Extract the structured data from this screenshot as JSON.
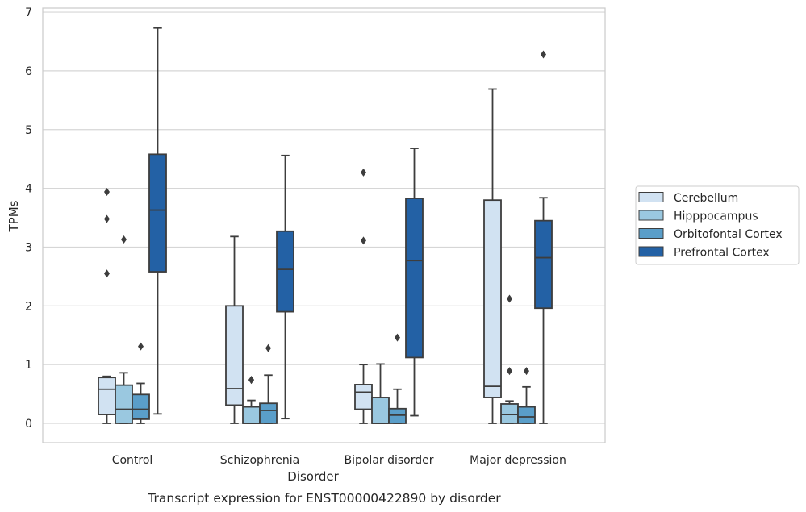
{
  "chart_data": {
    "type": "boxplot",
    "caption": "Transcript expression for ENST00000422890 by disorder",
    "xlabel": "Disorder",
    "ylabel": "TPMs",
    "ylim": [
      -0.32,
      7.08
    ],
    "yticks": [
      0,
      1,
      2,
      3,
      4,
      5,
      6,
      7
    ],
    "grid": true,
    "legend_position": "right",
    "categories": [
      "Control",
      "Schizophrenia",
      "Bipolar disorder",
      "Major depression"
    ],
    "series": [
      {
        "name": "Cerebellum",
        "color": "#d1e2f2",
        "boxes": [
          {
            "whislo": 0.0,
            "q1": 0.15,
            "med": 0.58,
            "q3": 0.78,
            "whishi": 0.8,
            "fliers": [
              3.94,
              3.48,
              2.55
            ]
          },
          {
            "whislo": 0.0,
            "q1": 0.31,
            "med": 0.59,
            "q3": 2.0,
            "whishi": 3.18,
            "fliers": []
          },
          {
            "whislo": 0.0,
            "q1": 0.24,
            "med": 0.53,
            "q3": 0.66,
            "whishi": 1.0,
            "fliers": [
              4.27,
              3.11
            ]
          },
          {
            "whislo": 0.0,
            "q1": 0.44,
            "med": 0.63,
            "q3": 3.8,
            "whishi": 5.69,
            "fliers": []
          }
        ]
      },
      {
        "name": "Hipppocampus",
        "color": "#9ac8e0",
        "boxes": [
          {
            "whislo": 0.0,
            "q1": 0.0,
            "med": 0.24,
            "q3": 0.65,
            "whishi": 0.86,
            "fliers": [
              3.13
            ]
          },
          {
            "whislo": 0.0,
            "q1": 0.0,
            "med": 0.0,
            "q3": 0.28,
            "whishi": 0.39,
            "fliers": [
              0.74,
              0.74
            ]
          },
          {
            "whislo": 0.0,
            "q1": 0.0,
            "med": 0.0,
            "q3": 0.44,
            "whishi": 1.01,
            "fliers": []
          },
          {
            "whislo": 0.0,
            "q1": 0.0,
            "med": 0.15,
            "q3": 0.33,
            "whishi": 0.38,
            "fliers": [
              2.12,
              0.89
            ]
          }
        ]
      },
      {
        "name": "Orbitofontal Cortex",
        "color": "#5a9ec9",
        "boxes": [
          {
            "whislo": 0.0,
            "q1": 0.07,
            "med": 0.24,
            "q3": 0.49,
            "whishi": 0.68,
            "fliers": [
              1.31
            ]
          },
          {
            "whislo": 0.0,
            "q1": 0.0,
            "med": 0.22,
            "q3": 0.34,
            "whishi": 0.82,
            "fliers": [
              1.28
            ]
          },
          {
            "whislo": 0.0,
            "q1": 0.0,
            "med": 0.14,
            "q3": 0.25,
            "whishi": 0.58,
            "fliers": [
              1.46
            ]
          },
          {
            "whislo": 0.0,
            "q1": 0.0,
            "med": 0.11,
            "q3": 0.28,
            "whishi": 0.62,
            "fliers": [
              0.89
            ]
          }
        ]
      },
      {
        "name": "Prefrontal Cortex",
        "color": "#2361a5",
        "boxes": [
          {
            "whislo": 0.16,
            "q1": 2.58,
            "med": 3.63,
            "q3": 4.58,
            "whishi": 6.73,
            "fliers": []
          },
          {
            "whislo": 0.08,
            "q1": 1.9,
            "med": 2.62,
            "q3": 3.27,
            "whishi": 4.56,
            "fliers": []
          },
          {
            "whislo": 0.13,
            "q1": 1.12,
            "med": 2.77,
            "q3": 3.83,
            "whishi": 4.68,
            "fliers": []
          },
          {
            "whislo": 0.0,
            "q1": 1.96,
            "med": 2.82,
            "q3": 3.45,
            "whishi": 3.84,
            "fliers": [
              6.28
            ]
          }
        ]
      }
    ]
  }
}
